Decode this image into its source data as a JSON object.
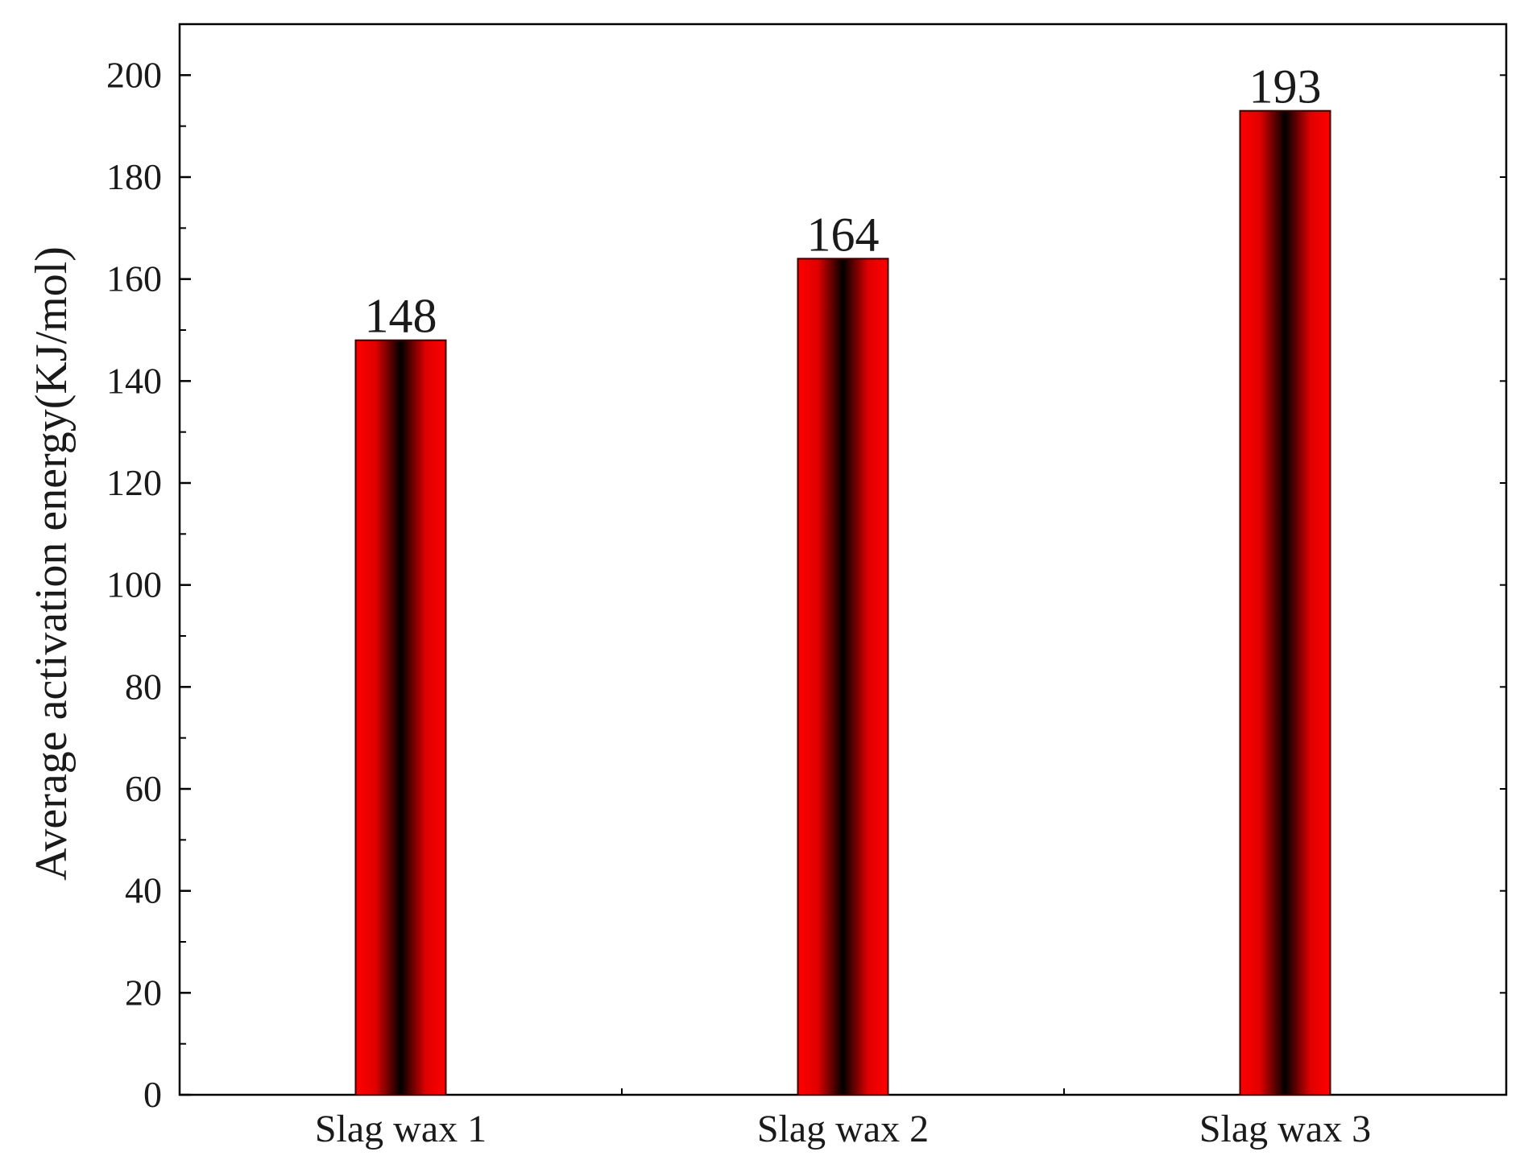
{
  "chart_data": {
    "type": "bar",
    "categories": [
      "Slag wax 1",
      "Slag wax 2",
      "Slag wax 3"
    ],
    "values": [
      148,
      164,
      193
    ],
    "data_labels": [
      "148",
      "164",
      "193"
    ],
    "xlabel": "",
    "ylabel": "Average activation energy(KJ/mol)",
    "ylim": [
      0,
      210
    ],
    "yticks": [
      0,
      20,
      40,
      60,
      80,
      100,
      120,
      140,
      160,
      180,
      200
    ],
    "ytick_labels": [
      "0",
      "20",
      "40",
      "60",
      "80",
      "100",
      "120",
      "140",
      "160",
      "180",
      "200"
    ],
    "grid": false,
    "legend": "none",
    "colors": {
      "bar_edge": "#e00000",
      "bar_center": "#000000",
      "axis": "#000000"
    }
  }
}
